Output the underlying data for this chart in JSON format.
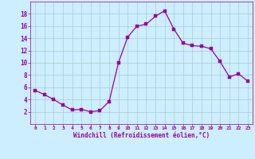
{
  "x": [
    0,
    1,
    2,
    3,
    4,
    5,
    6,
    7,
    8,
    9,
    10,
    11,
    12,
    13,
    14,
    15,
    16,
    17,
    18,
    19,
    20,
    21,
    22,
    23
  ],
  "y": [
    5.5,
    4.8,
    4.0,
    3.1,
    2.3,
    2.4,
    2.0,
    2.2,
    3.7,
    10.0,
    14.2,
    16.0,
    16.3,
    17.6,
    18.5,
    15.5,
    13.2,
    12.8,
    12.7,
    12.3,
    10.2,
    7.7,
    8.2,
    7.0
  ],
  "line_color": "#990099",
  "marker": "s",
  "marker_size": 2.5,
  "bg_color": "#cceeff",
  "grid_color": "#aacccc",
  "xlabel": "Windchill (Refroidissement éolien,°C)",
  "xlabel_color": "#990099",
  "tick_color": "#990099",
  "ylim": [
    0,
    20
  ],
  "xlim": [
    -0.5,
    23.5
  ],
  "yticks": [
    2,
    4,
    6,
    8,
    10,
    12,
    14,
    16,
    18
  ],
  "xticks": [
    0,
    1,
    2,
    3,
    4,
    5,
    6,
    7,
    8,
    9,
    10,
    11,
    12,
    13,
    14,
    15,
    16,
    17,
    18,
    19,
    20,
    21,
    22,
    23
  ]
}
